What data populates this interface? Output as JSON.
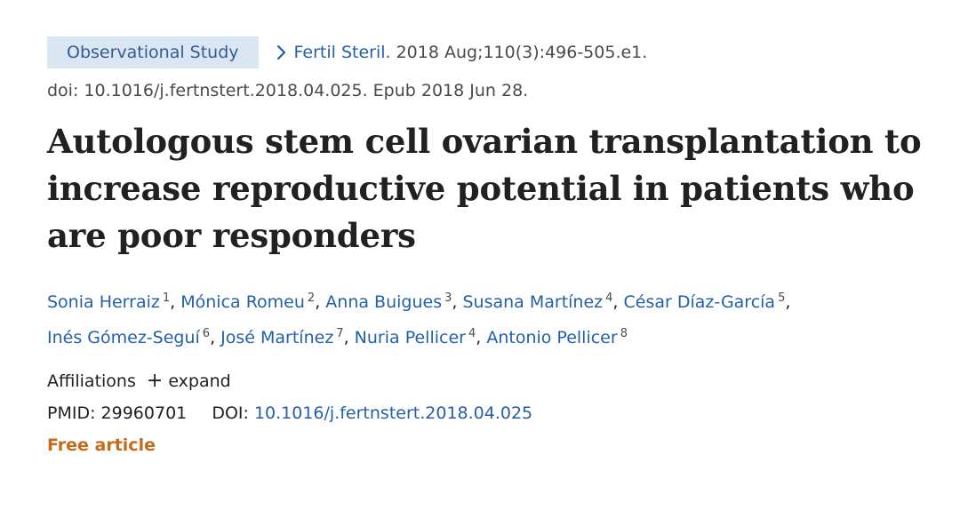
{
  "header": {
    "badge": "Observational Study",
    "journal": "Fertil Steril.",
    "citation": "2018 Aug;110(3):496-505.e1.",
    "doi_epub": "doi: 10.1016/j.fertnstert.2018.04.025. Epub 2018 Jun 28."
  },
  "article": {
    "title": "Autologous stem cell ovarian transplantation to increase reproductive potential in patients who are poor responders"
  },
  "authors": [
    {
      "name": "Sonia Herraiz",
      "aff": "1"
    },
    {
      "name": "Mónica Romeu",
      "aff": "2"
    },
    {
      "name": "Anna Buigues",
      "aff": "3"
    },
    {
      "name": "Susana Martínez",
      "aff": "4"
    },
    {
      "name": "César Díaz-García",
      "aff": "5"
    },
    {
      "name": "Inés Gómez-Seguí",
      "aff": "6"
    },
    {
      "name": "José Martínez",
      "aff": "7"
    },
    {
      "name": "Nuria Pellicer",
      "aff": "4"
    },
    {
      "name": "Antonio Pellicer",
      "aff": "8"
    }
  ],
  "affiliations": {
    "label": "Affiliations",
    "expand_label": "expand"
  },
  "identifiers": {
    "pmid_label": "PMID:",
    "pmid": "29960701",
    "doi_label": "DOI:",
    "doi": "10.1016/j.fertnstert.2018.04.025"
  },
  "access": {
    "free_label": "Free article"
  },
  "colors": {
    "link": "#2360aa",
    "badge_bg": "#dbe6f3",
    "free": "#c76a1a"
  }
}
